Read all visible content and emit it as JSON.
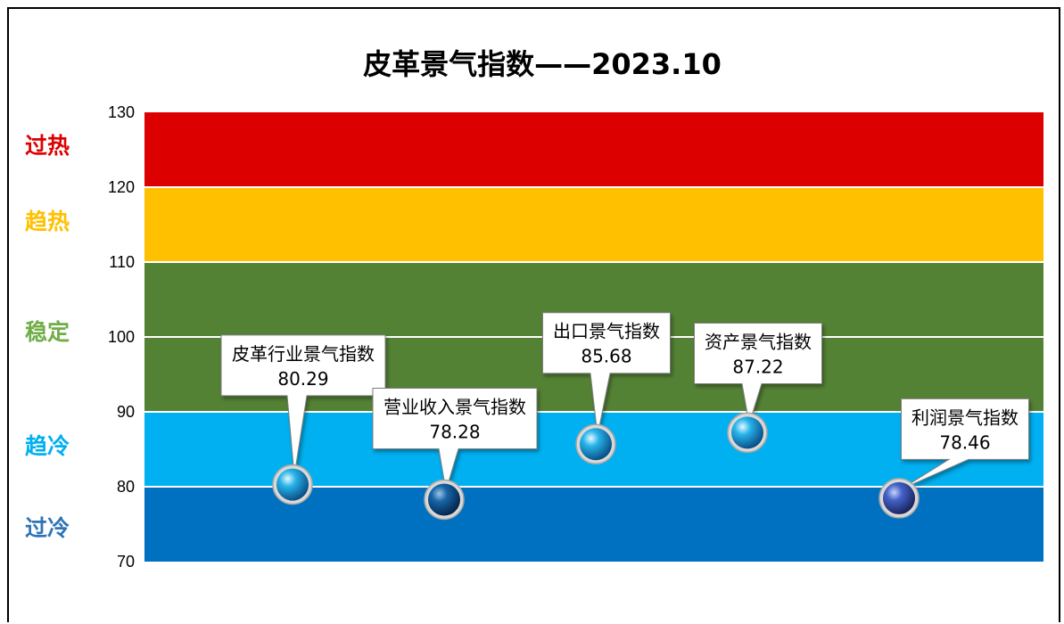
{
  "chart_data": {
    "type": "scatter",
    "title": "皮革景气指数——2023.10",
    "ylim": [
      70,
      130
    ],
    "yticks": [
      70,
      80,
      90,
      100,
      110,
      120,
      130
    ],
    "bands": [
      {
        "name": "过冷",
        "from": 70,
        "to": 80,
        "color": "#0070C0",
        "label_color": "#2E75B6",
        "label_value": 74.5
      },
      {
        "name": "趋冷",
        "from": 80,
        "to": 90,
        "color": "#00B0F0",
        "label_color": "#00B0F0",
        "label_value": 85.5
      },
      {
        "name": "稳定",
        "from": 90,
        "to": 110,
        "color": "#548235",
        "label_color": "#70AD47",
        "label_value": 100.7
      },
      {
        "name": "趋热",
        "from": 110,
        "to": 120,
        "color": "#FFC000",
        "label_color": "#FFC000",
        "label_value": 115.5
      },
      {
        "name": "过热",
        "from": 120,
        "to": 130,
        "color": "#DD0000",
        "label_color": "#DD0000",
        "label_value": 125.6
      }
    ],
    "points": [
      {
        "name": "皮革行业景气指数",
        "value": 80.29,
        "value_label": "80.29",
        "x": 1,
        "color": "#1BA8E0",
        "label_y": 96.2
      },
      {
        "name": "营业收入景气指数",
        "value": 78.28,
        "value_label": "78.28",
        "x": 2,
        "color": "#0E66A8",
        "label_y": 89.1
      },
      {
        "name": "出口景气指数",
        "value": 85.68,
        "value_label": "85.68",
        "x": 3,
        "color": "#1BA8E0",
        "label_y": 99.2
      },
      {
        "name": "资产景气指数",
        "value": 87.22,
        "value_label": "87.22",
        "x": 4,
        "color": "#1BA8E0",
        "label_y": 97.8
      },
      {
        "name": "利润景气指数",
        "value": 78.46,
        "value_label": "78.46",
        "x": 5,
        "color": "#3E5FC7",
        "label_y": 87.7
      }
    ],
    "grid": true,
    "legend": "none"
  }
}
